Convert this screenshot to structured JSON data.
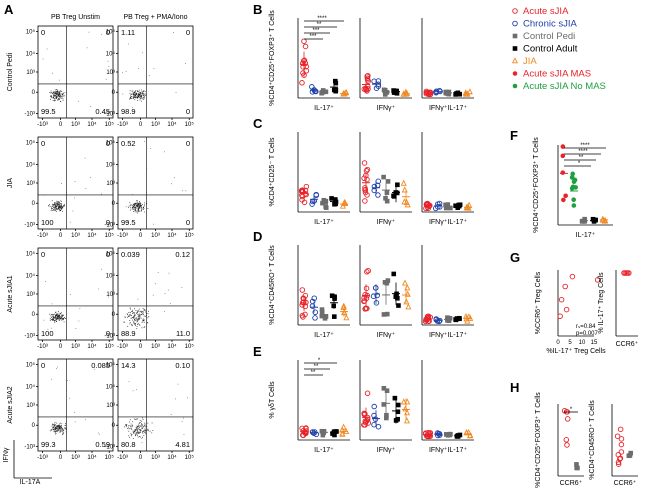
{
  "panels": {
    "A": {
      "label": "A",
      "col_titles": [
        "PB Treg Unstim",
        "PB Treg + PMA/Iono"
      ],
      "rows": [
        {
          "label": "Control Pedi",
          "quads": [
            [
              "0",
              "0",
              "99.5",
              "0.45"
            ],
            [
              "1.11",
              "0",
              "98.9",
              "0"
            ]
          ]
        },
        {
          "label": "JIA",
          "quads": [
            [
              "0",
              "0",
              "100",
              "0"
            ],
            [
              "0.52",
              "0",
              "99.5",
              "0"
            ]
          ]
        },
        {
          "label": "Acute sJIA1",
          "quads": [
            [
              "0",
              "0",
              "100",
              "0"
            ],
            [
              "0.039",
              "0.12",
              "88.9",
              "11.0"
            ]
          ]
        },
        {
          "label": "Acute sJIA2",
          "quads": [
            [
              "0",
              "0.085",
              "99.3",
              "0.59"
            ],
            [
              "14.3",
              "0.10",
              "80.8",
              "4.81"
            ]
          ]
        }
      ],
      "y_ticks": [
        "10⁵",
        "10⁴",
        "10³",
        "0",
        "-10³"
      ],
      "x_ticks": [
        "-10³",
        "0",
        "10³",
        "10⁴",
        "10⁵"
      ],
      "y_axis": "IFNγ",
      "x_axis": "IL-17A"
    },
    "B": {
      "label": "B",
      "ylabel": "%CD4⁺CD25⁺FOXP3⁺ T Cells",
      "groups": [
        "IL-17⁺",
        "IFNγ⁺",
        "IFNγ⁺IL-17⁺"
      ],
      "sig": [
        "****",
        "**",
        "***",
        "***"
      ]
    },
    "C": {
      "label": "C",
      "ylabel": "%CD4⁺CD25⁻ T Cells",
      "groups": [
        "IL-17⁺",
        "IFNγ⁺",
        "IFNγ⁺IL-17⁺"
      ]
    },
    "D": {
      "label": "D",
      "ylabel": "%CD4⁺CD45RO⁺ T Cells",
      "groups": [
        "IL-17⁺",
        "IFNγ⁺",
        "IFNγ⁺IL-17⁺"
      ]
    },
    "E": {
      "label": "E",
      "ylabel": "% γδT Cells",
      "groups": [
        "IL-17⁺",
        "IFNγ⁺",
        "IFNγ⁺IL-17⁺"
      ],
      "sig": [
        "*",
        "**",
        "**"
      ]
    },
    "F": {
      "label": "F",
      "ylabel": "%CD4⁺CD25⁺FOXP3⁺ T Cells",
      "groups": [
        "IL-17⁺"
      ],
      "sig": [
        "****",
        "****",
        "**",
        "*"
      ]
    },
    "G": {
      "label": "G",
      "ylabel_left": "%CCR6⁺ Treg Cells",
      "xlabel_left": "%IL-17⁺ Treg Cells",
      "x_ticks": [
        "0",
        "5",
        "10",
        "15"
      ],
      "ylabel_right": "% IL-17⁺ Treg Cells",
      "xlabel_right": "CCR6⁺",
      "r": "rₛ=0.84",
      "p": "p=0.007"
    },
    "H": {
      "label": "H",
      "ylabel_left": "%CD4⁺CD25⁺FOXP3⁺ T Cells",
      "ylabel_right": "%CD4⁺CD45RO⁺ T Cells",
      "xlabel": "CCR6⁺",
      "sig": "*"
    }
  },
  "legend": [
    {
      "label": "Acute sJIA",
      "color": "#e8232a",
      "marker": "open-circle"
    },
    {
      "label": "Chronic sJIA",
      "color": "#1f3fa8",
      "marker": "open-circle"
    },
    {
      "label": "Control Pedi",
      "color": "#6d6d6d",
      "marker": "filled-square"
    },
    {
      "label": "Control Adult",
      "color": "#000000",
      "marker": "filled-square"
    },
    {
      "label": "JIA",
      "color": "#f08a24",
      "marker": "open-triangle"
    },
    {
      "label": "Acute sJIA MAS",
      "color": "#e8232a",
      "marker": "filled-circle"
    },
    {
      "label": "Acute sJIA No MAS",
      "color": "#1fa040",
      "marker": "filled-circle"
    }
  ]
}
